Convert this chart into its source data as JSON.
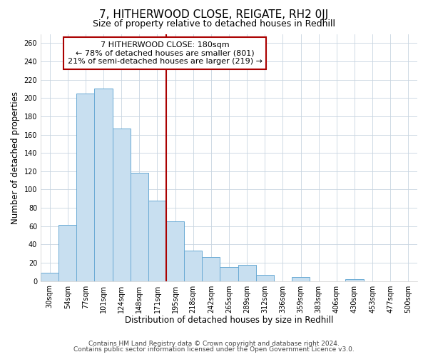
{
  "title": "7, HITHERWOOD CLOSE, REIGATE, RH2 0JJ",
  "subtitle": "Size of property relative to detached houses in Redhill",
  "xlabel": "Distribution of detached houses by size in Redhill",
  "ylabel": "Number of detached properties",
  "bar_labels": [
    "30sqm",
    "54sqm",
    "77sqm",
    "101sqm",
    "124sqm",
    "148sqm",
    "171sqm",
    "195sqm",
    "218sqm",
    "242sqm",
    "265sqm",
    "289sqm",
    "312sqm",
    "336sqm",
    "359sqm",
    "383sqm",
    "406sqm",
    "430sqm",
    "453sqm",
    "477sqm",
    "500sqm"
  ],
  "bar_values": [
    9,
    61,
    205,
    210,
    167,
    118,
    88,
    65,
    33,
    26,
    15,
    18,
    7,
    0,
    4,
    0,
    0,
    2,
    0,
    0,
    0
  ],
  "bar_color": "#c8dff0",
  "bar_edge_color": "#6aaad4",
  "vline_color": "#aa0000",
  "annotation_title": "7 HITHERWOOD CLOSE: 180sqm",
  "annotation_line1": "← 78% of detached houses are smaller (801)",
  "annotation_line2": "21% of semi-detached houses are larger (219) →",
  "annotation_box_color": "#ffffff",
  "annotation_box_edge": "#aa0000",
  "ylim": [
    0,
    270
  ],
  "yticks": [
    0,
    20,
    40,
    60,
    80,
    100,
    120,
    140,
    160,
    180,
    200,
    220,
    240,
    260
  ],
  "footnote1": "Contains HM Land Registry data © Crown copyright and database right 2024.",
  "footnote2": "Contains public sector information licensed under the Open Government Licence v3.0.",
  "title_fontsize": 11,
  "subtitle_fontsize": 9,
  "axis_label_fontsize": 8.5,
  "tick_fontsize": 7,
  "annotation_fontsize": 8,
  "footnote_fontsize": 6.5
}
